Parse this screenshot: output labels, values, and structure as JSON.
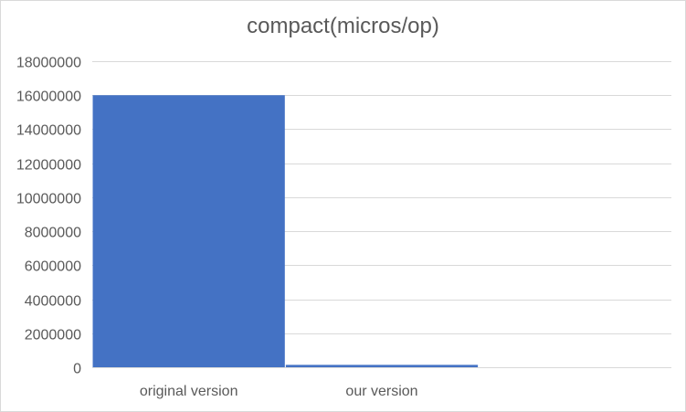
{
  "chart_data": {
    "type": "bar",
    "title": "compact(micros/op)",
    "categories": [
      "original version",
      "our version",
      ""
    ],
    "values": [
      16000000,
      140000,
      null
    ],
    "ylim": [
      0,
      18000000
    ],
    "yticks": [
      0,
      2000000,
      4000000,
      6000000,
      8000000,
      10000000,
      12000000,
      14000000,
      16000000,
      18000000
    ],
    "grid": true,
    "legend": "none",
    "bar_color": "#4472c4",
    "grid_color": "#d9d9d9"
  }
}
